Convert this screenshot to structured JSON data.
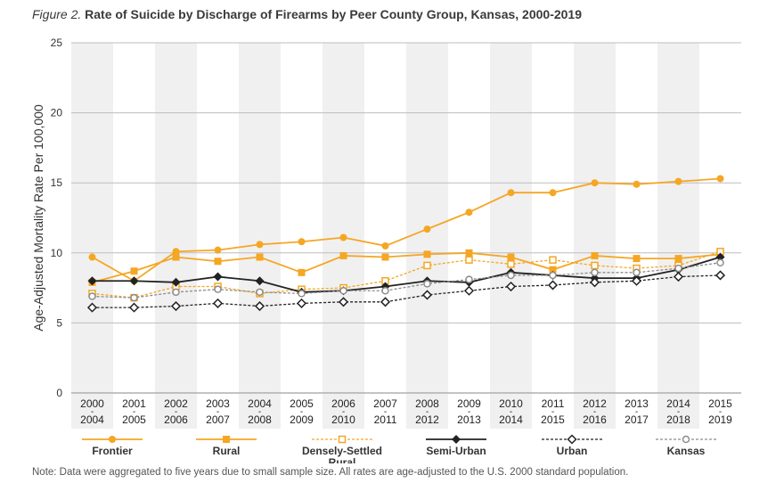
{
  "title": {
    "figure_label": "Figure 2.",
    "text": "Rate of Suicide by Discharge of Firearms by Peer County Group, Kansas, 2000-2019"
  },
  "note": "Note: Data were aggregated to five years due to small sample size. All rates are age-adjusted to the U.S. 2000 standard population.",
  "colors": {
    "orange": "#f5a623",
    "black": "#222222",
    "gray": "#8c8c8c",
    "band": "#f0f0f0",
    "grid": "#bdbdbd"
  },
  "chart_data": {
    "type": "line",
    "title": "Rate of Suicide by Discharge of Firearms by Peer County Group, Kansas, 2000-2019",
    "ylabel": "Age-Adjusted Mortality Rate Per 100,000",
    "xlabel": "",
    "ylim": [
      0,
      25
    ],
    "yticks": [
      0,
      5,
      10,
      15,
      20,
      25
    ],
    "categories": [
      {
        "start": "2000",
        "end": "2004"
      },
      {
        "start": "2001",
        "end": "2005"
      },
      {
        "start": "2002",
        "end": "2006"
      },
      {
        "start": "2003",
        "end": "2007"
      },
      {
        "start": "2004",
        "end": "2008"
      },
      {
        "start": "2005",
        "end": "2009"
      },
      {
        "start": "2006",
        "end": "2010"
      },
      {
        "start": "2007",
        "end": "2011"
      },
      {
        "start": "2008",
        "end": "2012"
      },
      {
        "start": "2009",
        "end": "2013"
      },
      {
        "start": "2010",
        "end": "2014"
      },
      {
        "start": "2011",
        "end": "2015"
      },
      {
        "start": "2012",
        "end": "2016"
      },
      {
        "start": "2013",
        "end": "2017"
      },
      {
        "start": "2014",
        "end": "2018"
      },
      {
        "start": "2015",
        "end": "2019"
      }
    ],
    "series": [
      {
        "name": "Frontier",
        "color": "#f5a623",
        "dash": "solid",
        "marker": "circle-filled",
        "values": [
          9.7,
          8.0,
          10.1,
          10.2,
          10.6,
          10.8,
          11.1,
          10.5,
          11.7,
          12.9,
          14.3,
          14.3,
          15.0,
          14.9,
          15.1,
          15.3
        ]
      },
      {
        "name": "Rural",
        "color": "#f5a623",
        "dash": "solid",
        "marker": "square-filled",
        "values": [
          7.9,
          8.7,
          9.7,
          9.4,
          9.7,
          8.6,
          9.8,
          9.7,
          9.9,
          10.0,
          9.7,
          8.8,
          9.8,
          9.6,
          9.6,
          9.9
        ]
      },
      {
        "name": "Densely-Settled Rural",
        "color": "#f5a623",
        "dash": "dotted",
        "marker": "square-open",
        "values": [
          7.1,
          6.8,
          7.6,
          7.6,
          7.1,
          7.4,
          7.5,
          8.0,
          9.1,
          9.5,
          9.2,
          9.5,
          9.1,
          8.9,
          9.1,
          10.1
        ]
      },
      {
        "name": "Semi-Urban",
        "color": "#222222",
        "dash": "solid",
        "marker": "diamond-filled",
        "values": [
          8.0,
          8.0,
          7.9,
          8.3,
          8.0,
          7.2,
          7.3,
          7.6,
          8.0,
          7.9,
          8.6,
          8.4,
          8.2,
          8.2,
          8.8,
          9.7
        ]
      },
      {
        "name": "Urban",
        "color": "#222222",
        "dash": "dotted",
        "marker": "diamond-open",
        "values": [
          6.1,
          6.1,
          6.2,
          6.4,
          6.2,
          6.4,
          6.5,
          6.5,
          7.0,
          7.3,
          7.6,
          7.7,
          7.9,
          8.0,
          8.3,
          8.4
        ]
      },
      {
        "name": "Kansas",
        "color": "#8c8c8c",
        "dash": "dotted",
        "marker": "circle-open",
        "values": [
          6.9,
          6.8,
          7.2,
          7.4,
          7.2,
          7.1,
          7.3,
          7.3,
          7.8,
          8.1,
          8.4,
          8.4,
          8.6,
          8.6,
          8.9,
          9.3
        ]
      }
    ],
    "legend_position": "bottom"
  }
}
